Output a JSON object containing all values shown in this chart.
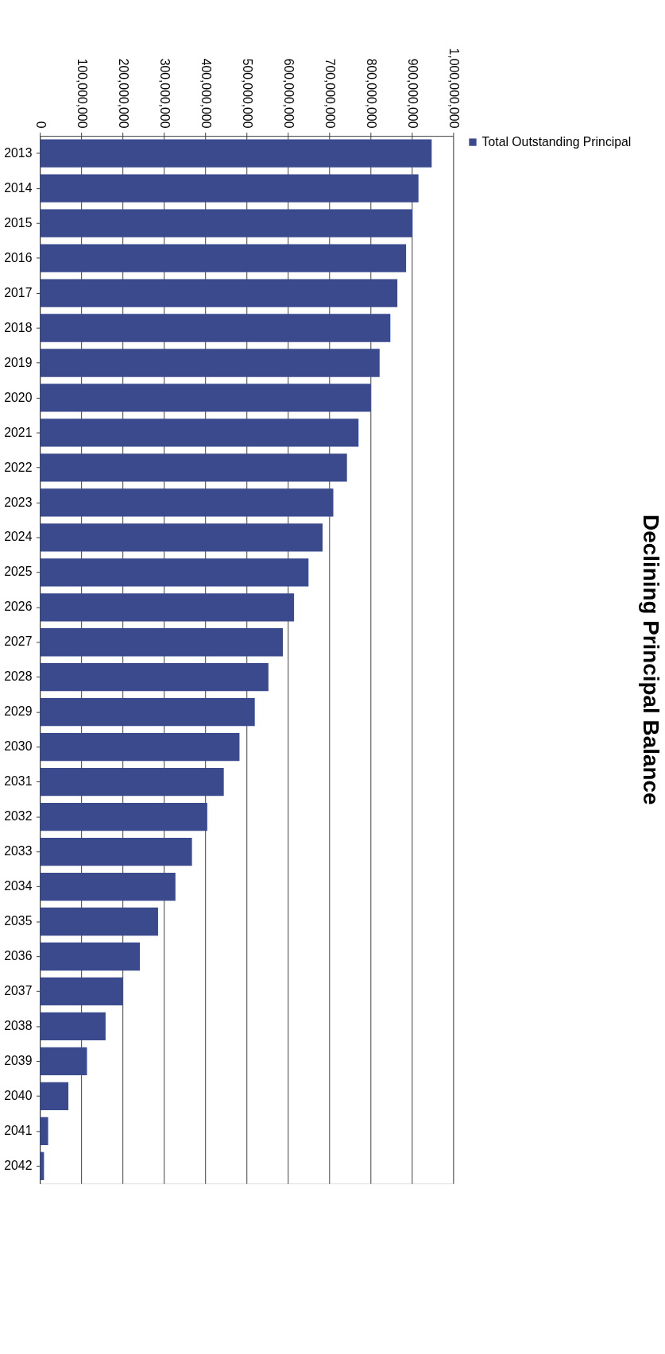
{
  "chart_data": {
    "type": "bar",
    "orientation": "horizontal",
    "title": "Declining Principal Balance",
    "categories": [
      "2013",
      "2014",
      "2015",
      "2016",
      "2017",
      "2018",
      "2019",
      "2020",
      "2021",
      "2022",
      "2023",
      "2024",
      "2025",
      "2026",
      "2027",
      "2028",
      "2029",
      "2030",
      "2031",
      "2032",
      "2033",
      "2034",
      "2035",
      "2036",
      "2037",
      "2038",
      "2039",
      "2040",
      "2041",
      "2042"
    ],
    "series": [
      {
        "name": "Total Outstanding Principal",
        "color": "#3b4a8c",
        "values": [
          948000000,
          916000000,
          901000000,
          886000000,
          865000000,
          848000000,
          822000000,
          801000000,
          771000000,
          743000000,
          710000000,
          684000000,
          650000000,
          615000000,
          588000000,
          553000000,
          520000000,
          483000000,
          445000000,
          405000000,
          368000000,
          328000000,
          286000000,
          242000000,
          201000000,
          159000000,
          114000000,
          69000000,
          20000000,
          10000000
        ]
      }
    ],
    "xlim": [
      0,
      1000000000
    ],
    "xticks": [
      0,
      {
        "value": 100000000,
        "label": "100,000,000"
      },
      {
        "value": 200000000,
        "label": "200,000,000"
      },
      {
        "value": 300000000,
        "label": "300,000,000"
      },
      {
        "value": 400000000,
        "label": "400,000,000"
      },
      {
        "value": 500000000,
        "label": "500,000,000"
      },
      {
        "value": 600000000,
        "label": "600,000,000"
      },
      {
        "value": 700000000,
        "label": "700,000,000"
      },
      {
        "value": 800000000,
        "label": "800,000,000"
      },
      {
        "value": 900000000,
        "label": "900,000,000"
      },
      {
        "value": 1000000000,
        "label": "1,000,000,000"
      }
    ],
    "grid": "x",
    "legend": "right"
  }
}
